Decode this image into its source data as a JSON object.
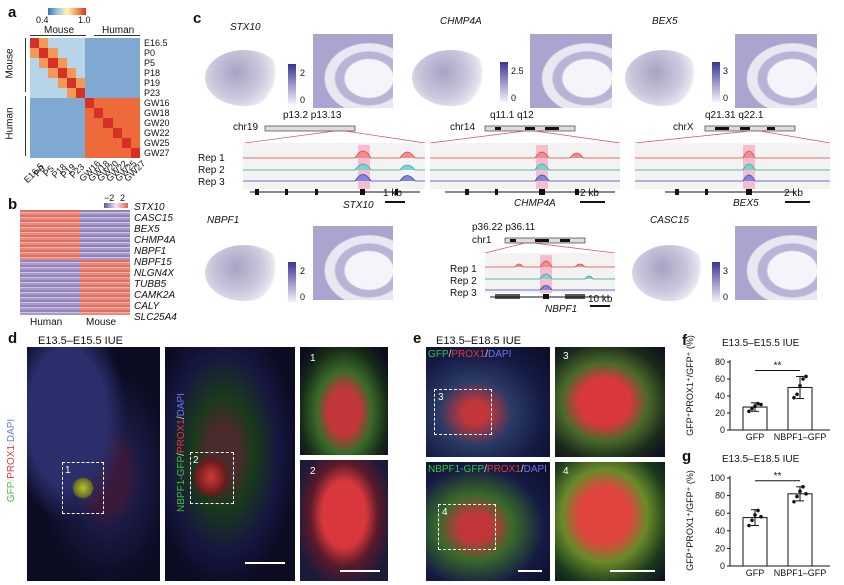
{
  "panels": {
    "a": {
      "label": "a",
      "scale_min": "0.4",
      "scale_max": "1.0",
      "col_groups": [
        "Mouse",
        "Human"
      ],
      "row_groups": [
        "Mouse",
        "Human"
      ],
      "rows": [
        "E16.5",
        "P0",
        "P5",
        "P18",
        "P19",
        "P23",
        "GW16",
        "GW18",
        "GW20",
        "GW22",
        "GW25",
        "GW27"
      ]
    },
    "b": {
      "label": "b",
      "scale_min": "−2",
      "scale_max": "2",
      "genes": [
        "STX10",
        "CASC15",
        "BEX5",
        "CHMP4A",
        "NBPF1",
        "NBPF15",
        "NLGN4X",
        "TUBB5",
        "CAMK2A",
        "CALY",
        "SLC25A4"
      ],
      "xlabels": [
        "Human",
        "Mouse"
      ]
    },
    "c": {
      "label": "c",
      "genes": [
        {
          "name": "STX10",
          "cmax": "2",
          "cmin": "0",
          "chr": "chr19",
          "bands": "p13.2 p13.13",
          "scale": "1 kb"
        },
        {
          "name": "CHMP4A",
          "cmax": "2.5",
          "cmin": "0",
          "chr": "chr14",
          "bands": "q11.1 q12",
          "scale": "2 kb"
        },
        {
          "name": "BEX5",
          "cmax": "3",
          "cmin": "0",
          "chr": "chrX",
          "bands": "q21.31 q22.1",
          "scale": "2 kb"
        },
        {
          "name": "NBPF1",
          "cmax": "2",
          "cmin": "0",
          "chr": "chr1",
          "bands": "p36.22 p36.11",
          "scale": "10 kb"
        },
        {
          "name": "CASC15",
          "cmax": "3",
          "cmin": "0"
        }
      ],
      "reps": [
        "Rep 1",
        "Rep 2",
        "Rep 3"
      ]
    },
    "d": {
      "label": "d",
      "title": "E13.5–E15.5 IUE",
      "side_left": [
        "GFP",
        "/",
        "PROX1",
        "/",
        "DAPI"
      ],
      "side_right": [
        "NBPF1-GFP",
        "/",
        "PROX1",
        "/",
        "DAPI"
      ],
      "box_labels": [
        "1",
        "2"
      ]
    },
    "e": {
      "label": "e",
      "title": "E13.5–E18.5 IUE",
      "top_stain": [
        "GFP",
        "/",
        "PROX1",
        "/",
        "DAPI"
      ],
      "bottom_stain": [
        "NBPF1-GFP",
        "/",
        "PROX1",
        "/",
        "DAPI"
      ],
      "box_labels": [
        "3",
        "4"
      ]
    },
    "f": {
      "label": "f",
      "title": "E13.5–E15.5 IUE",
      "ylabel": "GFP⁺PROX1⁺/GFP⁺ (%)",
      "sig": "**"
    },
    "g": {
      "label": "g",
      "title": "E13.5–E18.5 IUE",
      "ylabel": "GFP⁺PROX1⁺/GFP⁺ (%)",
      "sig": "**"
    }
  },
  "chart_data": [
    {
      "type": "bar",
      "title": "E13.5–E15.5 IUE",
      "ylabel": "GFP⁺PROX1⁺/GFP⁺ (%)",
      "categories": [
        "GFP",
        "NBPF1–GFP"
      ],
      "values": [
        27,
        50
      ],
      "errors": [
        5,
        13
      ],
      "points": [
        [
          22,
          25,
          28,
          31,
          30
        ],
        [
          38,
          42,
          52,
          60,
          63
        ]
      ],
      "yticks": [
        0,
        20,
        40,
        60,
        80
      ],
      "ylim": [
        0,
        80
      ]
    },
    {
      "type": "bar",
      "title": "E13.5–E18.5 IUE",
      "ylabel": "GFP⁺PROX1⁺/GFP⁺ (%)",
      "categories": [
        "GFP",
        "NBPF1–GFP"
      ],
      "values": [
        55,
        82
      ],
      "errors": [
        9,
        8
      ],
      "points": [
        [
          46,
          52,
          58,
          63,
          56
        ],
        [
          73,
          79,
          85,
          90,
          82
        ]
      ],
      "yticks": [
        0,
        20,
        40,
        60,
        80,
        100
      ],
      "ylim": [
        0,
        100
      ]
    }
  ]
}
